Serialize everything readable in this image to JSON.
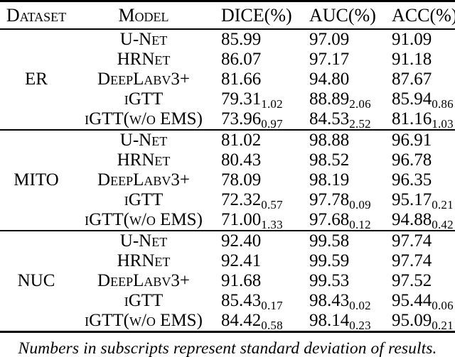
{
  "table": {
    "headers": {
      "dataset": "Dataset",
      "model": "Model",
      "dice": "DICE(%)",
      "auc": "AUC(%)",
      "acc": "ACC(%)"
    },
    "groups": [
      {
        "dataset": "ER",
        "rows": [
          {
            "model": "U-Net",
            "dice": {
              "v": "85.99"
            },
            "auc": {
              "v": "97.09"
            },
            "acc": {
              "v": "91.09"
            }
          },
          {
            "model": "HRNet",
            "dice": {
              "v": "86.07"
            },
            "auc": {
              "v": "97.17"
            },
            "acc": {
              "v": "91.18"
            }
          },
          {
            "model": "DeepLabv3+",
            "dice": {
              "v": "81.66"
            },
            "auc": {
              "v": "94.80"
            },
            "acc": {
              "v": "87.67"
            }
          },
          {
            "model": "iGTT",
            "dice": {
              "v": "79.31",
              "s": "1.02"
            },
            "auc": {
              "v": "88.89",
              "s": "2.06"
            },
            "acc": {
              "v": "85.94",
              "s": "0.86"
            }
          },
          {
            "model": "iGTT(w/o EMS)",
            "dice": {
              "v": "73.96",
              "s": "0.97"
            },
            "auc": {
              "v": "84.53",
              "s": "2.52"
            },
            "acc": {
              "v": "81.16",
              "s": "1.03"
            }
          }
        ]
      },
      {
        "dataset": "MITO",
        "rows": [
          {
            "model": "U-Net",
            "dice": {
              "v": "81.02"
            },
            "auc": {
              "v": "98.88"
            },
            "acc": {
              "v": "96.91"
            }
          },
          {
            "model": "HRNet",
            "dice": {
              "v": "80.43"
            },
            "auc": {
              "v": "98.52"
            },
            "acc": {
              "v": "96.78"
            }
          },
          {
            "model": "DeepLabv3+",
            "dice": {
              "v": "78.09"
            },
            "auc": {
              "v": "98.19"
            },
            "acc": {
              "v": "96.35"
            }
          },
          {
            "model": "iGTT",
            "dice": {
              "v": "72.32",
              "s": "0.57"
            },
            "auc": {
              "v": "97.78",
              "s": "0.09"
            },
            "acc": {
              "v": "95.17",
              "s": "0.21"
            }
          },
          {
            "model": "iGTT(w/o EMS)",
            "dice": {
              "v": "71.00",
              "s": "1.33"
            },
            "auc": {
              "v": "97.68",
              "s": "0.12"
            },
            "acc": {
              "v": "94.88",
              "s": "0.42"
            }
          }
        ]
      },
      {
        "dataset": "NUC",
        "rows": [
          {
            "model": "U-Net",
            "dice": {
              "v": "92.40"
            },
            "auc": {
              "v": "99.58"
            },
            "acc": {
              "v": "97.74"
            }
          },
          {
            "model": "HRNet",
            "dice": {
              "v": "92.41"
            },
            "auc": {
              "v": "99.59"
            },
            "acc": {
              "v": "97.74"
            }
          },
          {
            "model": "DeepLabv3+",
            "dice": {
              "v": "91.68"
            },
            "auc": {
              "v": "99.53"
            },
            "acc": {
              "v": "97.52"
            }
          },
          {
            "model": "iGTT",
            "dice": {
              "v": "85.43",
              "s": "0.17"
            },
            "auc": {
              "v": "98.43",
              "s": "0.02"
            },
            "acc": {
              "v": "95.44",
              "s": "0.06"
            }
          },
          {
            "model": "iGTT(w/o EMS)",
            "dice": {
              "v": "84.42",
              "s": "0.58"
            },
            "auc": {
              "v": "98.14",
              "s": "0.23"
            },
            "acc": {
              "v": "95.09",
              "s": "0.21"
            }
          }
        ]
      }
    ]
  },
  "caption": "Numbers in subscripts represent standard deviation of results."
}
